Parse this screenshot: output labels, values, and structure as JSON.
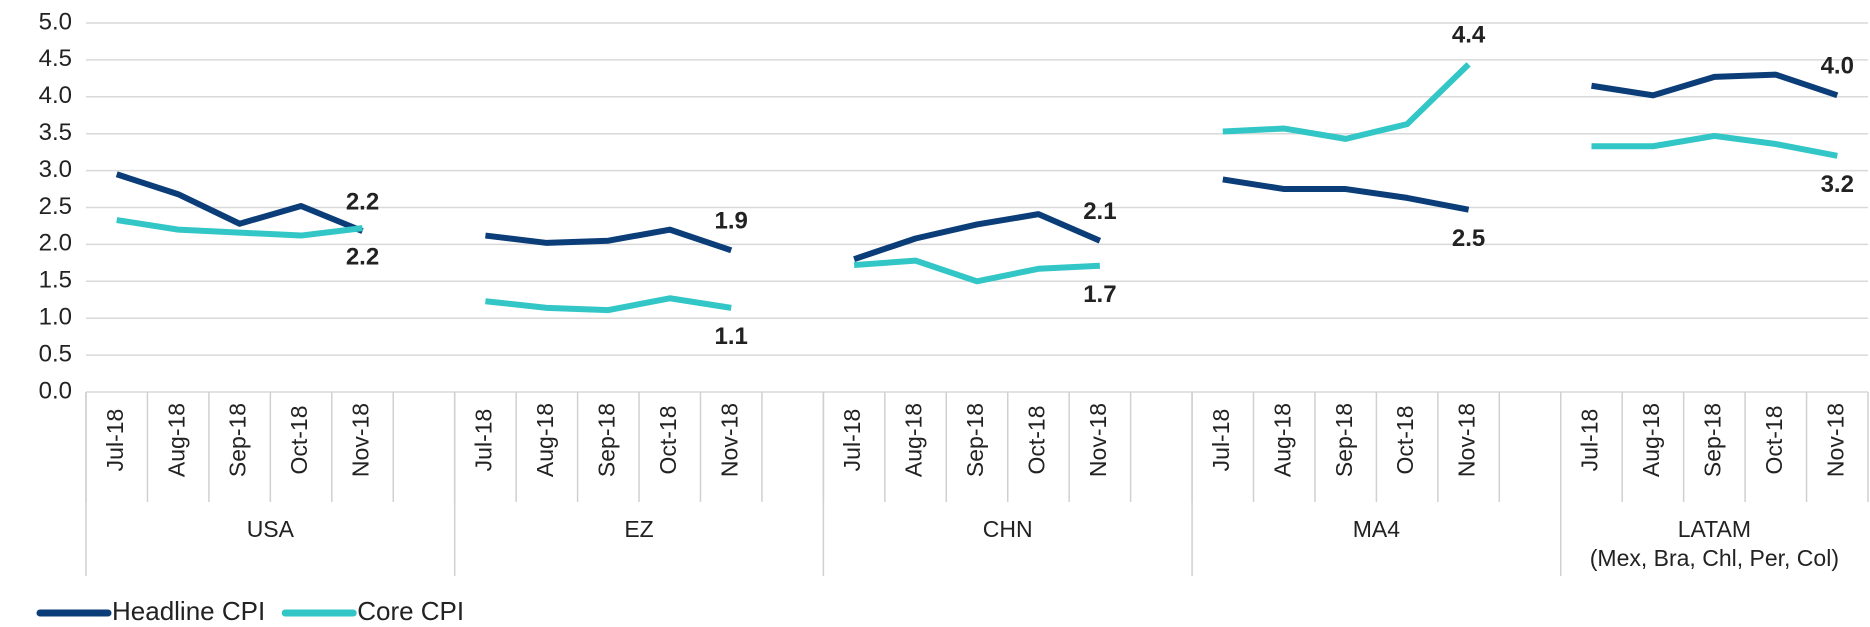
{
  "chart_data": {
    "type": "line",
    "categories": [
      "Jul-18",
      "Aug-18",
      "Sep-18",
      "Oct-18",
      "Nov-18",
      null,
      "Jul-18",
      "Aug-18",
      "Sep-18",
      "Oct-18",
      "Nov-18",
      null,
      "Jul-18",
      "Aug-18",
      "Sep-18",
      "Oct-18",
      "Nov-18",
      null,
      "Jul-18",
      "Aug-18",
      "Sep-18",
      "Oct-18",
      "Nov-18",
      null,
      "Jul-18",
      "Aug-18",
      "Sep-18",
      "Oct-18",
      "Nov-18"
    ],
    "groups": [
      {
        "labels": [
          "USA"
        ],
        "span": 6
      },
      {
        "labels": [
          "EZ"
        ],
        "span": 6
      },
      {
        "labels": [
          "CHN"
        ],
        "span": 6
      },
      {
        "labels": [
          "MA4"
        ],
        "span": 6
      },
      {
        "labels": [
          "LATAM",
          "(Mex, Bra, Chl, Per, Col)"
        ],
        "span": 5
      }
    ],
    "series": [
      {
        "name": "Headline CPI",
        "color": "#0b3d78",
        "values": [
          2.95,
          2.68,
          2.28,
          2.52,
          2.18,
          null,
          2.12,
          2.02,
          2.05,
          2.2,
          1.92,
          null,
          1.8,
          2.08,
          2.27,
          2.41,
          2.05,
          null,
          2.88,
          2.75,
          2.75,
          2.63,
          2.47,
          null,
          4.15,
          4.02,
          4.27,
          4.3,
          4.02
        ],
        "value_labels": [
          null,
          null,
          null,
          null,
          "2.2",
          null,
          null,
          null,
          null,
          null,
          "1.9",
          null,
          null,
          null,
          null,
          null,
          "2.1",
          null,
          null,
          null,
          null,
          null,
          "2.5",
          null,
          null,
          null,
          null,
          null,
          "4.0"
        ]
      },
      {
        "name": "Core CPI",
        "color": "#33c6c6",
        "values": [
          2.33,
          2.2,
          2.16,
          2.12,
          2.22,
          null,
          1.23,
          1.14,
          1.11,
          1.27,
          1.14,
          null,
          1.72,
          1.78,
          1.5,
          1.67,
          1.71,
          null,
          3.53,
          3.57,
          3.43,
          3.63,
          4.44,
          null,
          3.33,
          3.33,
          3.47,
          3.36,
          3.2
        ],
        "value_labels": [
          null,
          null,
          null,
          null,
          "2.2",
          null,
          null,
          null,
          null,
          null,
          "1.1",
          null,
          null,
          null,
          null,
          null,
          "1.7",
          null,
          null,
          null,
          null,
          null,
          "4.4",
          null,
          null,
          null,
          null,
          null,
          "3.2"
        ]
      }
    ],
    "ylim": [
      0,
      5
    ],
    "yticks": [
      {
        "value": 0,
        "label": "0.0"
      },
      {
        "value": 0.5,
        "label": "0.5"
      },
      {
        "value": 1,
        "label": "1.0"
      },
      {
        "value": 1.5,
        "label": "1.5"
      },
      {
        "value": 2,
        "label": "2.0"
      },
      {
        "value": 2.5,
        "label": "2.5"
      },
      {
        "value": 3,
        "label": "3.0"
      },
      {
        "value": 3.5,
        "label": "3.5"
      },
      {
        "value": 4,
        "label": "4.0"
      },
      {
        "value": 4.5,
        "label": "4.5"
      },
      {
        "value": 5,
        "label": "5.0"
      }
    ],
    "grid": true,
    "legend": "bottom-left"
  }
}
